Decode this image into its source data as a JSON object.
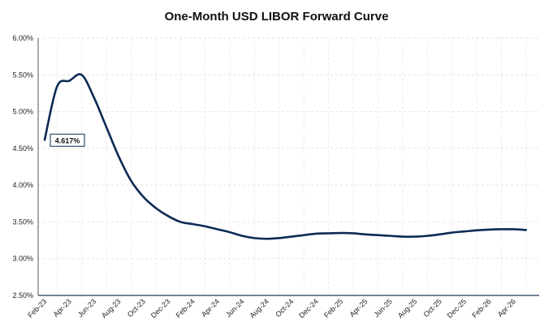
{
  "chart_data": {
    "type": "line",
    "title": "One-Month USD LIBOR Forward Curve",
    "xlabel": "",
    "ylabel": "",
    "ylim": [
      2.5,
      6.0
    ],
    "y_ticks": [
      "2.50%",
      "3.00%",
      "3.50%",
      "4.00%",
      "4.50%",
      "5.00%",
      "5.50%",
      "6.00%"
    ],
    "x_ticks": [
      "Feb-23",
      "Apr-23",
      "Jun-23",
      "Aug-23",
      "Oct-23",
      "Dec-23",
      "Feb-24",
      "Apr-24",
      "Jun-24",
      "Aug-24",
      "Oct-24",
      "Dec-24",
      "Feb-25",
      "Apr-25",
      "Jun-25",
      "Aug-25",
      "Oct-25",
      "Dec-25",
      "Feb-26",
      "Apr-26"
    ],
    "grid": true,
    "line_color": "#0b2a55",
    "series": [
      {
        "x": [
          "Feb-23",
          "Mar-23",
          "Apr-23",
          "May-23",
          "Jun-23",
          "Jul-23",
          "Aug-23",
          "Sep-23",
          "Oct-23",
          "Nov-23",
          "Dec-23",
          "Jan-24",
          "Feb-24",
          "Mar-24",
          "Apr-24",
          "May-24",
          "Jun-24",
          "Jul-24",
          "Aug-24",
          "Sep-24",
          "Oct-24",
          "Nov-24",
          "Dec-24",
          "Jan-25",
          "Feb-25",
          "Mar-25",
          "Apr-25",
          "May-25",
          "Jun-25",
          "Jul-25",
          "Aug-25",
          "Sep-25",
          "Oct-25",
          "Nov-25",
          "Dec-25",
          "Jan-26",
          "Feb-26",
          "Mar-26",
          "Apr-26",
          "May-26"
        ],
        "values": [
          4.617,
          5.34,
          5.42,
          5.5,
          5.19,
          4.79,
          4.39,
          4.06,
          3.84,
          3.69,
          3.58,
          3.5,
          3.47,
          3.44,
          3.4,
          3.36,
          3.31,
          3.28,
          3.27,
          3.28,
          3.3,
          3.32,
          3.34,
          3.345,
          3.35,
          3.345,
          3.33,
          3.32,
          3.31,
          3.3,
          3.3,
          3.31,
          3.33,
          3.355,
          3.37,
          3.385,
          3.395,
          3.4,
          3.4,
          3.39
        ]
      }
    ],
    "annotation": {
      "text": "4.617%",
      "x": "Feb-23",
      "value": 4.617
    }
  }
}
